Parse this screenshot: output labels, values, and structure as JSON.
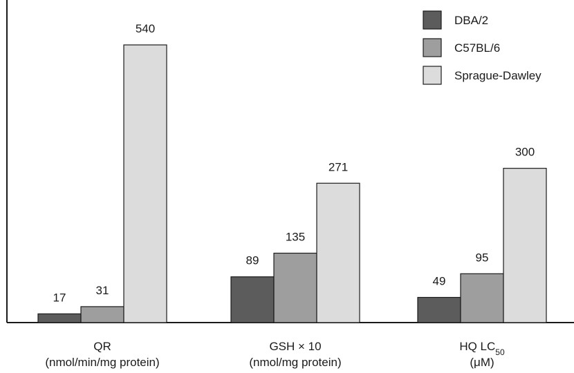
{
  "chart_data": {
    "type": "bar",
    "categories": [
      {
        "name": "QR",
        "unit": "(nmol/min/mg protein)"
      },
      {
        "name": "GSH × 10",
        "unit": "(nmol/mg protein)"
      },
      {
        "name": "HQ LC",
        "name_sub": "50",
        "unit": "(μM)"
      }
    ],
    "series": [
      {
        "name": "DBA/2",
        "color": "#5c5c5c",
        "values": [
          17,
          89,
          49
        ]
      },
      {
        "name": "C57BL/6",
        "color": "#9e9e9e",
        "values": [
          31,
          135,
          95
        ]
      },
      {
        "name": "Sprague-Dawley",
        "color": "#dcdcdc",
        "values": [
          540,
          271,
          300
        ]
      }
    ],
    "ylim": [
      0,
      600
    ],
    "legend_position": "top-right",
    "grid": false
  }
}
